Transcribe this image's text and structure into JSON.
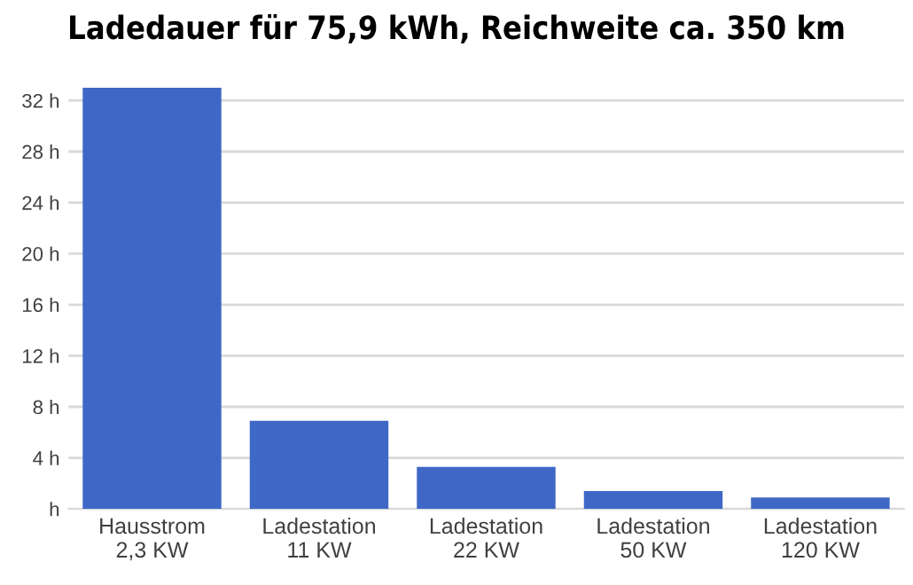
{
  "chart_data": {
    "type": "bar",
    "title": "Ladedauer für 75,9 kWh, Reichweite ca. 350 km",
    "categories": [
      "Hausstrom\n2,3 KW",
      "Ladestation\n11 KW",
      "Ladestation\n22 KW",
      "Ladestation\n50 KW",
      "Ladestation\n120 KW"
    ],
    "values": [
      33,
      6.9,
      3.3,
      1.4,
      0.9
    ],
    "color": "#3f68c6",
    "ylim": [
      0,
      33
    ],
    "yticks": [
      {
        "value": 0,
        "label": "h"
      },
      {
        "value": 4,
        "label": "4 h"
      },
      {
        "value": 8,
        "label": "8 h"
      },
      {
        "value": 12,
        "label": "12 h"
      },
      {
        "value": 16,
        "label": "16 h"
      },
      {
        "value": 20,
        "label": "20 h"
      },
      {
        "value": 24,
        "label": "24 h"
      },
      {
        "value": 28,
        "label": "28 h"
      },
      {
        "value": 32,
        "label": "32 h"
      }
    ],
    "grid": "y"
  }
}
